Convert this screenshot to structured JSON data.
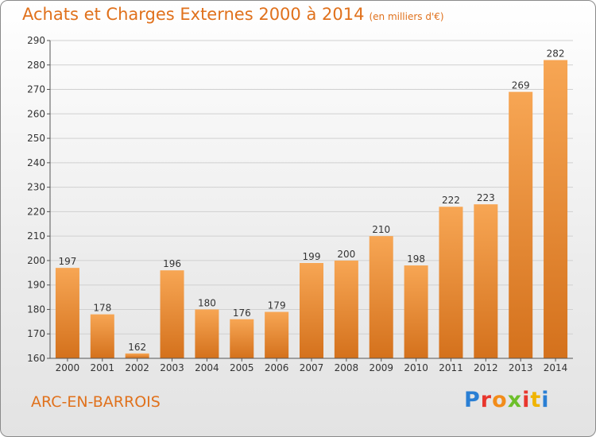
{
  "title": "Achats et Charges Externes 2000 à 2014",
  "unit_note": "(en milliers d'€)",
  "location": "ARC-EN-BARROIS",
  "brand": {
    "text": "Proxiti",
    "letter_colors": [
      "#2a7fd4",
      "#e8362d",
      "#f28c1a",
      "#6cbf2a",
      "#e8362d",
      "#f0b400",
      "#2a7fd4"
    ]
  },
  "colors": {
    "bar_top": "#f7a654",
    "bar_bottom": "#d4711c",
    "title": "#e0711c",
    "grid": "#d0d0d0"
  },
  "chart_data": {
    "type": "bar",
    "title": "Achats et Charges Externes 2000 à 2014",
    "subtitle": "(en milliers d'€)",
    "categories": [
      "2000",
      "2001",
      "2002",
      "2003",
      "2004",
      "2005",
      "2006",
      "2007",
      "2008",
      "2009",
      "2010",
      "2011",
      "2012",
      "2013",
      "2014"
    ],
    "values": [
      197,
      178,
      162,
      196,
      180,
      176,
      179,
      199,
      200,
      210,
      198,
      222,
      223,
      269,
      282
    ],
    "ylim": [
      160,
      290
    ],
    "yticks": [
      160,
      170,
      180,
      190,
      200,
      210,
      220,
      230,
      240,
      250,
      260,
      270,
      280,
      290
    ],
    "xlabel": "",
    "ylabel": "",
    "grid": true,
    "data_labels": true
  }
}
